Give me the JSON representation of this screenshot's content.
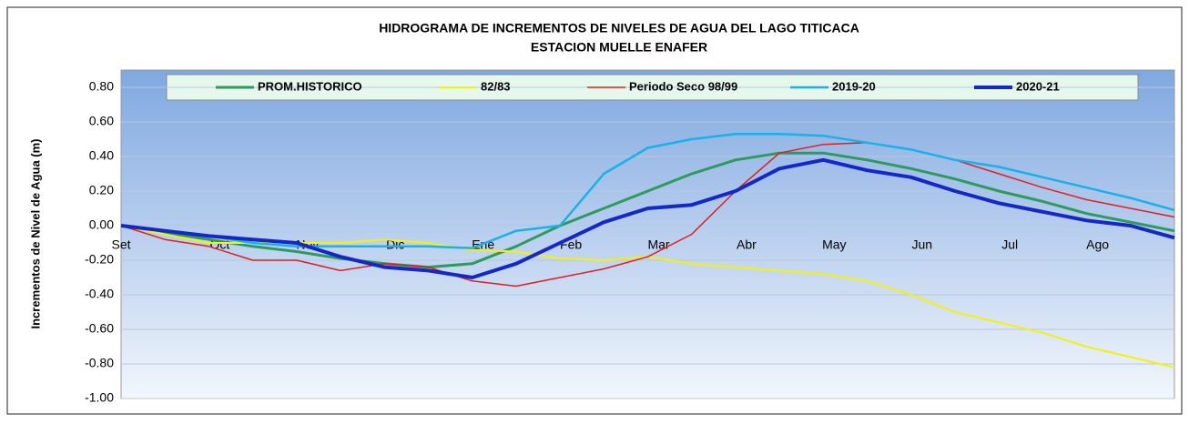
{
  "chart_data": {
    "type": "line",
    "title": [
      "HIDROGRAMA DE INCREMENTOS DE NIVELES DE AGUA DEL  LAGO TITICACA",
      "ESTACION MUELLE ENAFER"
    ],
    "y_label": "Incrementos de Nivel de Agua (m)",
    "categories": [
      "Set",
      null,
      "Oct",
      null,
      "Nov",
      null,
      "Dic",
      null,
      "Ene",
      null,
      "Feb",
      null,
      "Mar",
      null,
      "Abr",
      null,
      "May",
      null,
      "Jun",
      null,
      "Jul",
      null,
      "Ago",
      null,
      null
    ],
    "ylim": [
      -1.0,
      0.9
    ],
    "yticks": [
      {
        "value": -1.0,
        "label": "-1.00"
      },
      {
        "value": -0.8,
        "label": "-0.80"
      },
      {
        "value": -0.6,
        "label": "-0.60"
      },
      {
        "value": -0.4,
        "label": "-0.40"
      },
      {
        "value": -0.2,
        "label": "-0.20"
      },
      {
        "value": 0,
        "label": "0.00"
      },
      {
        "value": 0.2,
        "label": "0.20"
      },
      {
        "value": 0.4,
        "label": "0.40"
      },
      {
        "value": 0.6,
        "label": "0.60"
      },
      {
        "value": 0.8,
        "label": "0.80"
      }
    ],
    "grid": true,
    "legend": "top",
    "series": [
      {
        "name": "PROM.HISTORICO",
        "color": "#2e9a5e",
        "width": 3,
        "values": [
          0,
          -0.04,
          -0.08,
          -0.12,
          -0.15,
          -0.19,
          -0.22,
          -0.24,
          -0.22,
          -0.12,
          0.0,
          0.1,
          0.2,
          0.3,
          0.38,
          0.42,
          0.42,
          0.38,
          0.33,
          0.27,
          0.2,
          0.14,
          0.07,
          0.02,
          -0.03
        ]
      },
      {
        "name": "82/83",
        "color": "#f2f20a",
        "width": 2,
        "values": [
          0,
          -0.05,
          -0.1,
          -0.1,
          -0.1,
          -0.1,
          -0.08,
          -0.1,
          -0.14,
          -0.15,
          -0.19,
          -0.2,
          -0.18,
          -0.22,
          -0.24,
          -0.26,
          -0.28,
          -0.32,
          -0.4,
          -0.5,
          -0.56,
          -0.62,
          -0.7,
          -0.76,
          -0.82
        ]
      },
      {
        "name": "Periodo Seco 98/99",
        "color": "#e02020",
        "width": 1.5,
        "values": [
          0,
          -0.08,
          -0.12,
          -0.2,
          -0.2,
          -0.26,
          -0.22,
          -0.24,
          -0.32,
          -0.35,
          -0.3,
          -0.25,
          -0.18,
          -0.05,
          0.2,
          0.42,
          0.47,
          0.48,
          0.44,
          0.38,
          0.3,
          0.22,
          0.15,
          0.1,
          0.05
        ]
      },
      {
        "name": "2019-20",
        "color": "#1ab0e8",
        "width": 2.5,
        "values": [
          0,
          -0.03,
          -0.06,
          -0.1,
          -0.12,
          -0.12,
          -0.12,
          -0.12,
          -0.13,
          -0.03,
          0.0,
          0.3,
          0.45,
          0.5,
          0.53,
          0.53,
          0.52,
          0.48,
          0.44,
          0.38,
          0.34,
          0.28,
          0.22,
          0.16,
          0.09
        ]
      },
      {
        "name": "2020-21",
        "color": "#1428c8",
        "width": 4,
        "values": [
          0,
          -0.03,
          -0.06,
          -0.08,
          -0.1,
          -0.18,
          -0.24,
          -0.26,
          -0.3,
          -0.22,
          -0.1,
          0.02,
          0.1,
          0.12,
          0.2,
          0.33,
          0.38,
          0.32,
          0.28,
          0.2,
          0.13,
          0.08,
          0.03,
          0.0,
          -0.07
        ]
      }
    ]
  }
}
